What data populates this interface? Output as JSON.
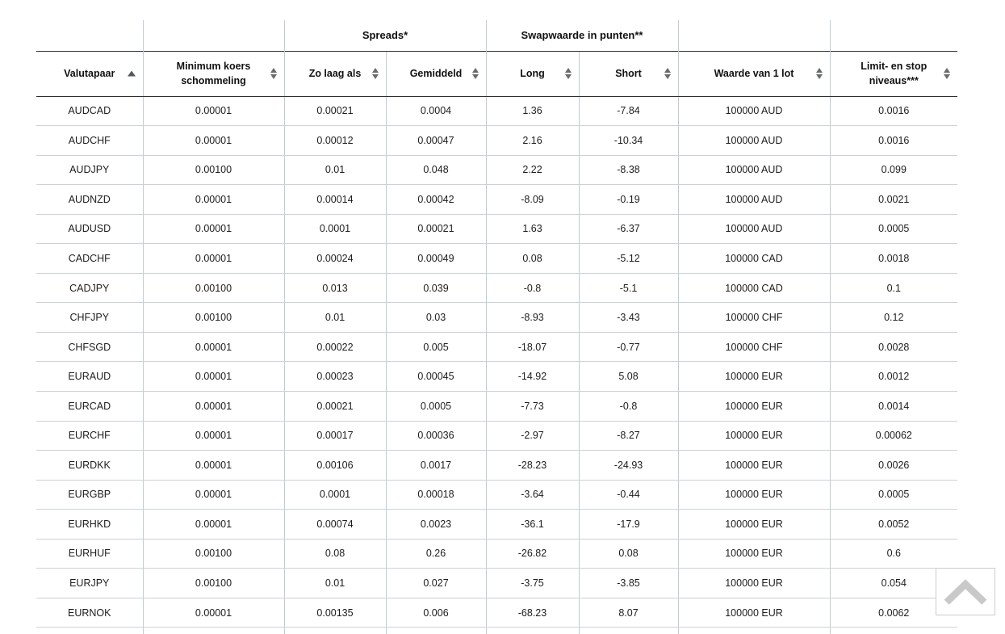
{
  "colors": {
    "dark_border": "#2e2e2e",
    "light_border": "#c3ccd0",
    "header_text": "#111111",
    "cell_text": "#1d1d1d",
    "sort_arrow_active": "#585858",
    "sort_arrow": "#6b6b6b",
    "scroll_button_border": "#cccccc",
    "scroll_chevron": "#c9c9c9"
  },
  "table": {
    "group_headers": [
      {
        "label": "",
        "span": 1
      },
      {
        "label": "",
        "span": 1
      },
      {
        "label": "Spreads*",
        "span": 2
      },
      {
        "label": "Swapwaarde in punten**",
        "span": 2
      },
      {
        "label": "",
        "span": 1
      },
      {
        "label": "",
        "span": 1
      }
    ],
    "columns": [
      {
        "label": "Valutapaar",
        "sort": "asc"
      },
      {
        "label": "Minimum koers schommeling",
        "sort": "both"
      },
      {
        "label": "Zo laag als",
        "sort": "both"
      },
      {
        "label": "Gemiddeld",
        "sort": "both"
      },
      {
        "label": "Long",
        "sort": "both"
      },
      {
        "label": "Short",
        "sort": "both"
      },
      {
        "label": "Waarde van 1 lot",
        "sort": "both"
      },
      {
        "label": "Limit- en stop niveaus***",
        "sort": "both"
      }
    ],
    "rows": [
      [
        "AUDCAD",
        "0.00001",
        "0.00021",
        "0.0004",
        "1.36",
        "-7.84",
        "100000 AUD",
        "0.0016"
      ],
      [
        "AUDCHF",
        "0.00001",
        "0.00012",
        "0.00047",
        "2.16",
        "-10.34",
        "100000 AUD",
        "0.0016"
      ],
      [
        "AUDJPY",
        "0.00100",
        "0.01",
        "0.048",
        "2.22",
        "-8.38",
        "100000 AUD",
        "0.099"
      ],
      [
        "AUDNZD",
        "0.00001",
        "0.00014",
        "0.00042",
        "-8.09",
        "-0.19",
        "100000 AUD",
        "0.0021"
      ],
      [
        "AUDUSD",
        "0.00001",
        "0.0001",
        "0.00021",
        "1.63",
        "-6.37",
        "100000 AUD",
        "0.0005"
      ],
      [
        "CADCHF",
        "0.00001",
        "0.00024",
        "0.00049",
        "0.08",
        "-5.12",
        "100000 CAD",
        "0.0018"
      ],
      [
        "CADJPY",
        "0.00100",
        "0.013",
        "0.039",
        "-0.8",
        "-5.1",
        "100000 CAD",
        "0.1"
      ],
      [
        "CHFJPY",
        "0.00100",
        "0.01",
        "0.03",
        "-8.93",
        "-3.43",
        "100000 CHF",
        "0.12"
      ],
      [
        "CHFSGD",
        "0.00001",
        "0.00022",
        "0.005",
        "-18.07",
        "-0.77",
        "100000 CHF",
        "0.0028"
      ],
      [
        "EURAUD",
        "0.00001",
        "0.00023",
        "0.00045",
        "-14.92",
        "5.08",
        "100000 EUR",
        "0.0012"
      ],
      [
        "EURCAD",
        "0.00001",
        "0.00021",
        "0.0005",
        "-7.73",
        "-0.8",
        "100000 EUR",
        "0.0014"
      ],
      [
        "EURCHF",
        "0.00001",
        "0.00017",
        "0.00036",
        "-2.97",
        "-8.27",
        "100000 EUR",
        "0.00062"
      ],
      [
        "EURDKK",
        "0.00001",
        "0.00106",
        "0.0017",
        "-28.23",
        "-24.93",
        "100000 EUR",
        "0.0026"
      ],
      [
        "EURGBP",
        "0.00001",
        "0.0001",
        "0.00018",
        "-3.64",
        "-0.44",
        "100000 EUR",
        "0.0005"
      ],
      [
        "EURHKD",
        "0.00001",
        "0.00074",
        "0.0023",
        "-36.1",
        "-17.9",
        "100000 EUR",
        "0.0052"
      ],
      [
        "EURHUF",
        "0.00100",
        "0.08",
        "0.26",
        "-26.82",
        "0.08",
        "100000 EUR",
        "0.6"
      ],
      [
        "EURJPY",
        "0.00100",
        "0.01",
        "0.027",
        "-3.75",
        "-3.85",
        "100000 EUR",
        "0.054"
      ],
      [
        "EURNOK",
        "0.00001",
        "0.00135",
        "0.006",
        "-68.23",
        "8.07",
        "100000 EUR",
        "0.0062"
      ]
    ]
  },
  "scroll_to_top": {
    "icon": "chevron-up"
  }
}
